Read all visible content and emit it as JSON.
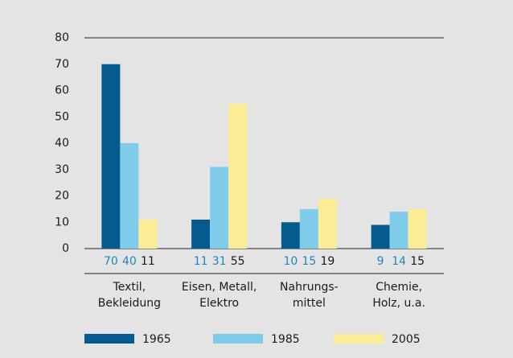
{
  "chart_data": {
    "type": "bar",
    "categories": [
      [
        "Textil,",
        "Bekleidung"
      ],
      [
        "Eisen, Metall,",
        "Elektro"
      ],
      [
        "Nahrungs-",
        "mittel"
      ],
      [
        "Chemie,",
        "Holz, u.a."
      ]
    ],
    "series": [
      {
        "name": "1965",
        "color": "#065b8e",
        "values": [
          70,
          11,
          10,
          9
        ]
      },
      {
        "name": "1985",
        "color": "#7fcdea",
        "values": [
          40,
          31,
          15,
          14
        ]
      },
      {
        "name": "2005",
        "color": "#fbec95",
        "values": [
          11,
          55,
          19,
          15
        ]
      }
    ],
    "ylim": [
      0,
      80
    ],
    "yticks": [
      0,
      10,
      20,
      30,
      40,
      50,
      60,
      70,
      80
    ],
    "grid": false
  }
}
